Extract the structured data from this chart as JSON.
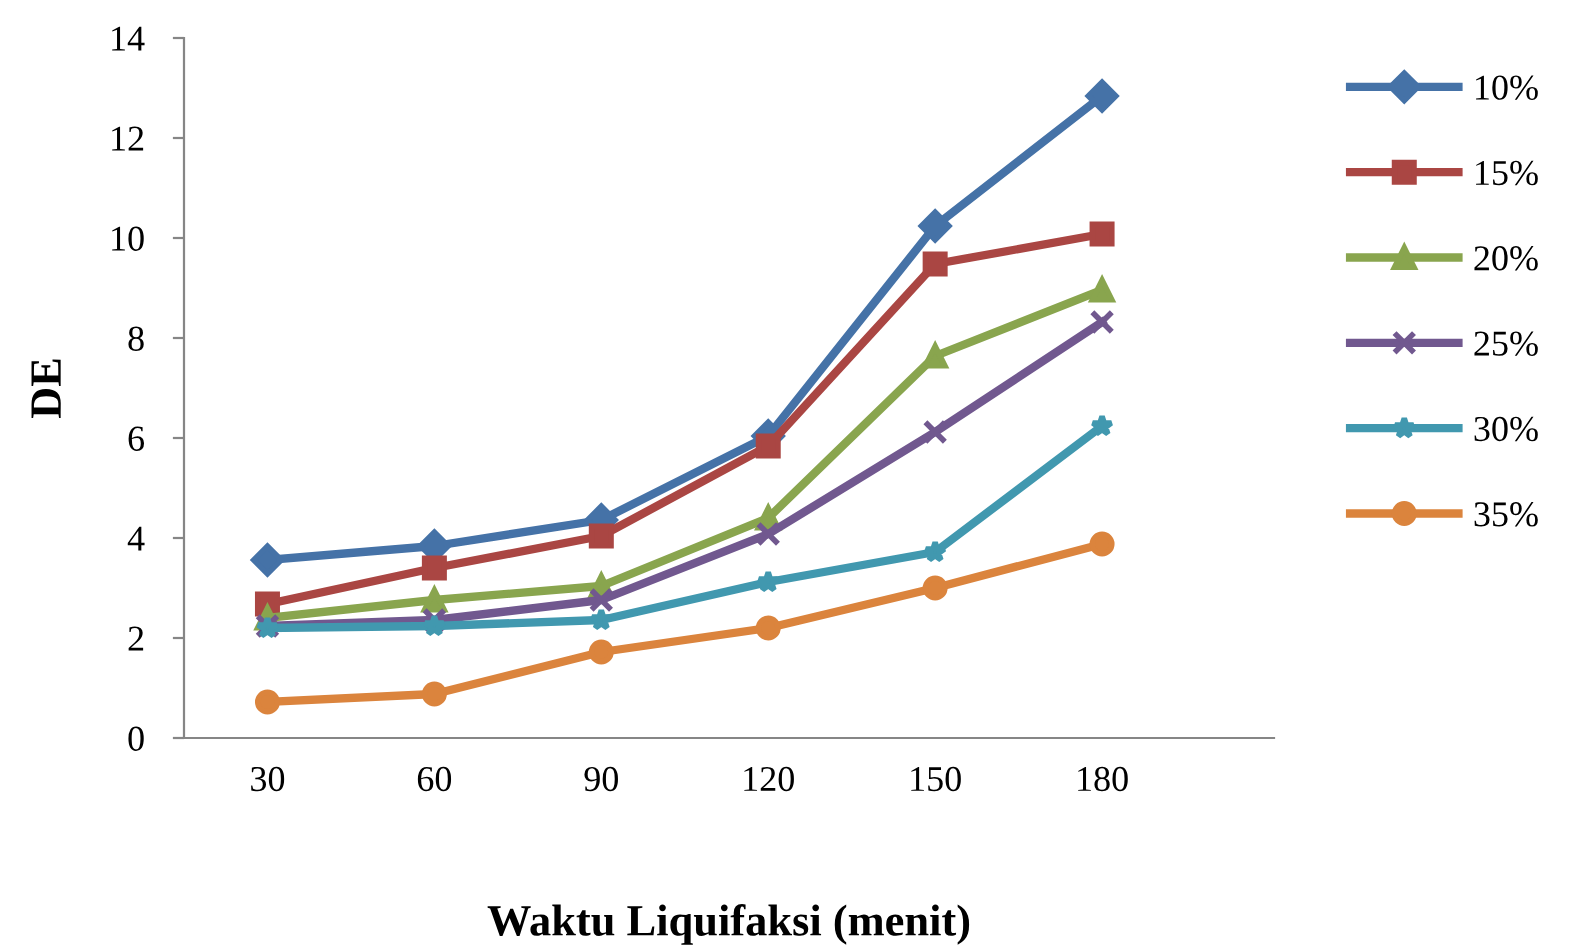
{
  "chart_data": {
    "type": "line",
    "xlabel": "Waktu Liquifaksi (menit)",
    "ylabel": "DE",
    "categories": [
      "30",
      "60",
      "90",
      "120",
      "150",
      "180"
    ],
    "series": [
      {
        "name": "10%",
        "color": "#4572a7",
        "marker": "diamond",
        "values": [
          3.56,
          3.84,
          4.36,
          6.04,
          10.24,
          12.84
        ]
      },
      {
        "name": "15%",
        "color": "#aa4643",
        "marker": "square",
        "values": [
          2.68,
          3.4,
          4.04,
          5.84,
          9.48,
          10.08
        ]
      },
      {
        "name": "20%",
        "color": "#89a54e",
        "marker": "triangle",
        "values": [
          2.4,
          2.76,
          3.04,
          4.4,
          7.64,
          8.96
        ]
      },
      {
        "name": "25%",
        "color": "#71588f",
        "marker": "cross",
        "values": [
          2.24,
          2.36,
          2.76,
          4.08,
          6.12,
          8.32
        ]
      },
      {
        "name": "30%",
        "color": "#4198af",
        "marker": "star",
        "values": [
          2.2,
          2.24,
          2.36,
          3.12,
          3.72,
          6.24
        ]
      },
      {
        "name": "35%",
        "color": "#db843d",
        "marker": "circle",
        "values": [
          0.72,
          0.88,
          1.72,
          2.2,
          3.0,
          3.88
        ]
      }
    ],
    "ylim": [
      0,
      14
    ],
    "yticks": [
      0,
      2,
      4,
      6,
      8,
      10,
      12,
      14
    ],
    "grid": false,
    "legend": "right",
    "line_style": "solid"
  }
}
